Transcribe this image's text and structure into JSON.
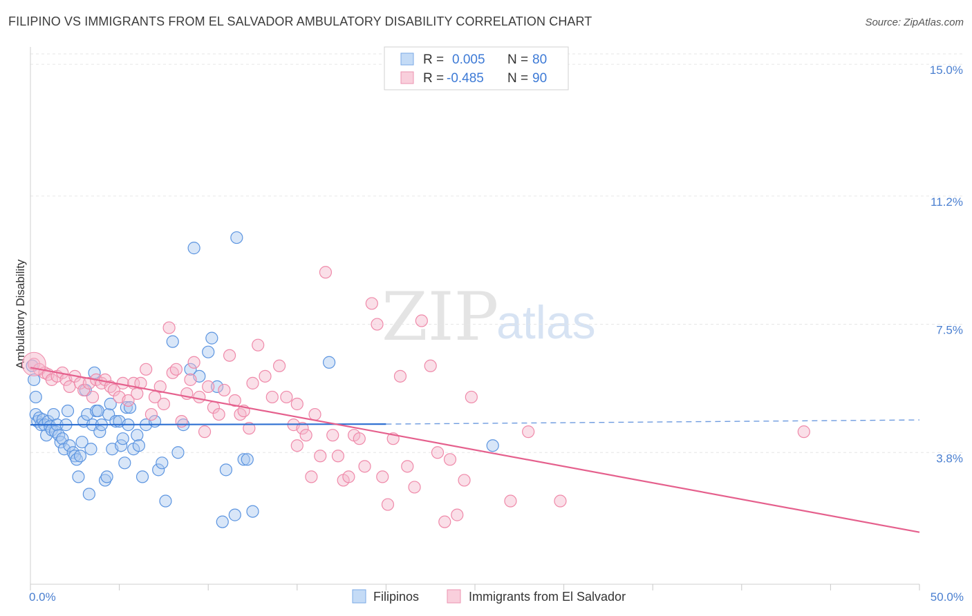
{
  "header": {
    "title": "FILIPINO VS IMMIGRANTS FROM EL SALVADOR AMBULATORY DISABILITY CORRELATION CHART",
    "source": "Source: ZipAtlas.com"
  },
  "watermark": {
    "zip": "ZIP",
    "atlas": "atlas"
  },
  "legend_box": {
    "rows": [
      {
        "r_label": "R =",
        "r_value": "0.005",
        "n_label": "N =",
        "n_value": "80",
        "color": "#a8c8f0"
      },
      {
        "r_label": "R =",
        "r_value": "-0.485",
        "n_label": "N =",
        "n_value": "90",
        "color": "#f5b8cb"
      }
    ]
  },
  "bottom_legend": [
    {
      "label": "Filipinos",
      "color": "#a8c8f0"
    },
    {
      "label": "Immigrants from El Salvador",
      "color": "#f5b8cb"
    }
  ],
  "chart_data": {
    "type": "scatter",
    "title": "FILIPINO VS IMMIGRANTS FROM EL SALVADOR AMBULATORY DISABILITY CORRELATION CHART",
    "ylabel": "Ambulatory Disability",
    "xlabel": "",
    "xlim": [
      0,
      50
    ],
    "ylim": [
      0,
      15.5
    ],
    "y_ticks": [
      3.8,
      7.5,
      11.2,
      15.0
    ],
    "y_tick_labels": [
      "3.8%",
      "7.5%",
      "11.2%",
      "15.0%"
    ],
    "x_tick_labels": {
      "min": "0.0%",
      "max": "50.0%"
    },
    "grid": "dashed horizontal",
    "legend": "top-center",
    "colors": {
      "filipinos": "#5b94e0",
      "salvador": "#ef89a9",
      "blue_line": "#2d6fd1",
      "pink_line": "#e5608d"
    },
    "series": [
      {
        "name": "Filipinos",
        "r": 0.005,
        "n": 80,
        "trend": {
          "x": [
            0,
            20
          ],
          "y": [
            4.6,
            4.62
          ],
          "dashed_to": [
            50,
            4.74
          ]
        },
        "points": [
          [
            0.1,
            6.3
          ],
          [
            0.2,
            5.9
          ],
          [
            0.3,
            5.4
          ],
          [
            0.3,
            4.9
          ],
          [
            0.4,
            4.7
          ],
          [
            0.5,
            4.8
          ],
          [
            0.6,
            4.6
          ],
          [
            0.7,
            4.75
          ],
          [
            0.8,
            4.6
          ],
          [
            0.9,
            4.3
          ],
          [
            1.0,
            4.7
          ],
          [
            1.1,
            4.55
          ],
          [
            1.2,
            4.45
          ],
          [
            1.3,
            4.9
          ],
          [
            1.4,
            4.4
          ],
          [
            1.5,
            4.6
          ],
          [
            1.6,
            4.3
          ],
          [
            1.7,
            4.1
          ],
          [
            1.8,
            4.2
          ],
          [
            1.9,
            3.9
          ],
          [
            2.0,
            4.6
          ],
          [
            2.1,
            5.0
          ],
          [
            2.2,
            4.0
          ],
          [
            2.4,
            3.8
          ],
          [
            2.5,
            3.7
          ],
          [
            2.6,
            3.6
          ],
          [
            2.7,
            3.1
          ],
          [
            2.8,
            3.7
          ],
          [
            2.9,
            4.1
          ],
          [
            3.0,
            4.7
          ],
          [
            3.1,
            5.6
          ],
          [
            3.2,
            4.9
          ],
          [
            3.3,
            2.6
          ],
          [
            3.4,
            3.9
          ],
          [
            3.5,
            4.6
          ],
          [
            3.6,
            6.1
          ],
          [
            3.7,
            5.0
          ],
          [
            3.8,
            5.0
          ],
          [
            3.9,
            4.4
          ],
          [
            4.0,
            4.6
          ],
          [
            4.2,
            3.0
          ],
          [
            4.3,
            3.1
          ],
          [
            4.4,
            4.9
          ],
          [
            4.5,
            5.2
          ],
          [
            4.6,
            3.9
          ],
          [
            4.8,
            4.7
          ],
          [
            5.0,
            4.7
          ],
          [
            5.1,
            4.0
          ],
          [
            5.2,
            4.2
          ],
          [
            5.3,
            3.5
          ],
          [
            5.4,
            5.1
          ],
          [
            5.5,
            4.6
          ],
          [
            5.6,
            5.1
          ],
          [
            5.8,
            3.9
          ],
          [
            6.0,
            4.3
          ],
          [
            6.1,
            4.0
          ],
          [
            6.3,
            3.1
          ],
          [
            6.5,
            4.6
          ],
          [
            7.0,
            4.7
          ],
          [
            7.2,
            3.3
          ],
          [
            7.4,
            3.5
          ],
          [
            7.6,
            2.4
          ],
          [
            8.0,
            7.0
          ],
          [
            8.3,
            3.8
          ],
          [
            8.6,
            4.6
          ],
          [
            9.0,
            6.2
          ],
          [
            9.2,
            9.7
          ],
          [
            9.5,
            6.0
          ],
          [
            10.0,
            6.7
          ],
          [
            10.2,
            7.1
          ],
          [
            10.5,
            5.7
          ],
          [
            10.8,
            1.8
          ],
          [
            11.0,
            3.3
          ],
          [
            11.5,
            2.0
          ],
          [
            11.6,
            10.0
          ],
          [
            12.0,
            3.6
          ],
          [
            12.2,
            3.6
          ],
          [
            12.5,
            2.1
          ],
          [
            16.8,
            6.4
          ],
          [
            26.0,
            4.0
          ]
        ]
      },
      {
        "name": "Immigrants from El Salvador",
        "r": -0.485,
        "n": 90,
        "trend": {
          "x": [
            0,
            50
          ],
          "y": [
            6.25,
            1.5
          ]
        },
        "points": [
          [
            0.2,
            6.35
          ],
          [
            0.5,
            6.2
          ],
          [
            0.8,
            6.1
          ],
          [
            1.0,
            6.05
          ],
          [
            1.2,
            5.9
          ],
          [
            1.5,
            6.0
          ],
          [
            1.8,
            6.1
          ],
          [
            2.0,
            5.9
          ],
          [
            2.2,
            5.7
          ],
          [
            2.5,
            6.0
          ],
          [
            2.8,
            5.8
          ],
          [
            3.0,
            5.6
          ],
          [
            3.3,
            5.8
          ],
          [
            3.5,
            5.4
          ],
          [
            3.7,
            5.9
          ],
          [
            4.0,
            5.8
          ],
          [
            4.2,
            5.9
          ],
          [
            4.5,
            5.7
          ],
          [
            4.7,
            5.6
          ],
          [
            5.0,
            5.4
          ],
          [
            5.2,
            5.8
          ],
          [
            5.5,
            5.3
          ],
          [
            5.8,
            5.8
          ],
          [
            6.0,
            5.5
          ],
          [
            6.2,
            5.8
          ],
          [
            6.5,
            6.2
          ],
          [
            6.8,
            4.9
          ],
          [
            7.0,
            5.4
          ],
          [
            7.3,
            5.7
          ],
          [
            7.5,
            5.2
          ],
          [
            7.8,
            7.4
          ],
          [
            8.0,
            6.1
          ],
          [
            8.2,
            6.2
          ],
          [
            8.5,
            4.7
          ],
          [
            8.8,
            5.5
          ],
          [
            9.0,
            5.9
          ],
          [
            9.2,
            6.4
          ],
          [
            9.5,
            5.4
          ],
          [
            9.8,
            4.4
          ],
          [
            10.0,
            5.7
          ],
          [
            10.3,
            5.1
          ],
          [
            10.6,
            4.9
          ],
          [
            10.9,
            5.6
          ],
          [
            11.2,
            6.6
          ],
          [
            11.5,
            5.3
          ],
          [
            11.8,
            4.9
          ],
          [
            12.0,
            5.0
          ],
          [
            12.3,
            4.5
          ],
          [
            12.5,
            5.8
          ],
          [
            12.8,
            6.9
          ],
          [
            13.2,
            6.0
          ],
          [
            13.6,
            5.4
          ],
          [
            14.0,
            6.3
          ],
          [
            14.4,
            5.4
          ],
          [
            14.8,
            4.6
          ],
          [
            15.0,
            4.0
          ],
          [
            15.3,
            4.5
          ],
          [
            15.5,
            4.3
          ],
          [
            15.8,
            3.1
          ],
          [
            16.0,
            4.9
          ],
          [
            16.3,
            3.7
          ],
          [
            16.6,
            9.0
          ],
          [
            17.0,
            4.3
          ],
          [
            17.3,
            3.7
          ],
          [
            17.6,
            3.0
          ],
          [
            17.9,
            3.1
          ],
          [
            18.2,
            4.3
          ],
          [
            18.5,
            4.2
          ],
          [
            18.8,
            3.4
          ],
          [
            19.2,
            8.1
          ],
          [
            19.5,
            7.5
          ],
          [
            19.8,
            3.1
          ],
          [
            20.1,
            2.3
          ],
          [
            20.4,
            4.2
          ],
          [
            20.8,
            6.0
          ],
          [
            21.2,
            3.4
          ],
          [
            21.6,
            2.8
          ],
          [
            22.0,
            7.6
          ],
          [
            22.5,
            6.3
          ],
          [
            22.9,
            3.8
          ],
          [
            23.3,
            1.8
          ],
          [
            23.6,
            3.6
          ],
          [
            24.0,
            2.0
          ],
          [
            24.4,
            3.0
          ],
          [
            24.8,
            5.4
          ],
          [
            27.0,
            2.4
          ],
          [
            28.0,
            4.4
          ],
          [
            29.8,
            2.4
          ],
          [
            43.5,
            4.4
          ],
          [
            15.0,
            5.2
          ]
        ]
      }
    ]
  }
}
